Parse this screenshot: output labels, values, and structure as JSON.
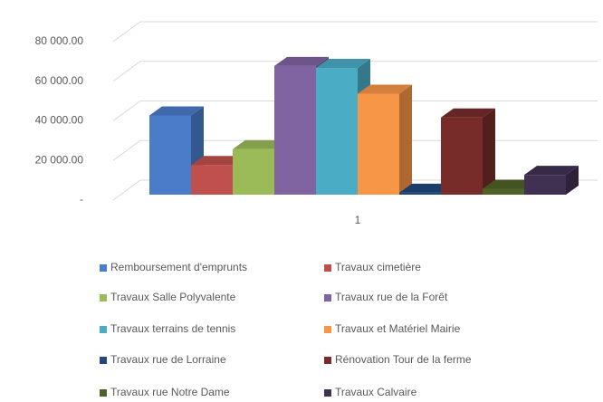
{
  "chart_data": {
    "type": "bar3d",
    "categories": [
      "1"
    ],
    "series": [
      {
        "name": "Remboursement d'emprunts",
        "color": "#4a7cc9",
        "values": [
          40000
        ]
      },
      {
        "name": "Travaux cimetière",
        "color": "#c0504d",
        "values": [
          15000
        ]
      },
      {
        "name": "Travaux Salle Polyvalente",
        "color": "#9bbb59",
        "values": [
          23000
        ]
      },
      {
        "name": "Travaux rue de la Forêt",
        "color": "#8064a2",
        "values": [
          65000
        ]
      },
      {
        "name": "Travaux terrains de tennis",
        "color": "#4bacc6",
        "values": [
          64000
        ]
      },
      {
        "name": "Travaux et Matériel Mairie",
        "color": "#f79646",
        "values": [
          51000
        ]
      },
      {
        "name": "Travaux rue de Lorraine",
        "color": "#1f497d",
        "values": [
          1000
        ]
      },
      {
        "name": "Rénovation Tour de la ferme",
        "color": "#772c2a",
        "values": [
          39000
        ]
      },
      {
        "name": "Travaux rue Notre Dame",
        "color": "#4f6228",
        "values": [
          3000
        ]
      },
      {
        "name": "Travaux Calvaire",
        "color": "#403152",
        "values": [
          10000
        ]
      }
    ],
    "ylim": [
      0,
      80000
    ],
    "yticks": [
      {
        "value": 0,
        "label": "-"
      },
      {
        "value": 20000,
        "label": "20 000.00"
      },
      {
        "value": 40000,
        "label": "40 000.00"
      },
      {
        "value": 60000,
        "label": "60 000.00"
      },
      {
        "value": 80000,
        "label": "80 000.00"
      }
    ],
    "grid": true,
    "legend": "bottom"
  }
}
